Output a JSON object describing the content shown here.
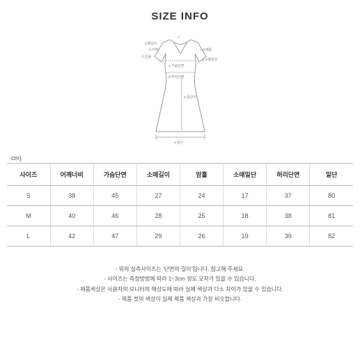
{
  "title": "SIZE INFO",
  "unit": "cm)",
  "diagram": {
    "stroke": "#999999",
    "label_color": "#888888",
    "labels": {
      "f": "f.",
      "shoulder": "b.어깨",
      "sleeve": "소매길이",
      "hem": "h.암홀",
      "bust": "c.가슴단면",
      "waist": "d.허리단면",
      "length": "a.총길이",
      "bottom": "e.밑단",
      "sleeve_hem": "j.소매통",
      "g": "g.소매밑단"
    }
  },
  "table": {
    "columns": [
      "사이즈",
      "어깨너비",
      "가슴단면",
      "소매길이",
      "암홀",
      "소매밑단",
      "허리단면",
      "밑단"
    ],
    "rows": [
      [
        "S",
        "38",
        "45",
        "27",
        "24",
        "17",
        "37",
        "80"
      ],
      [
        "M",
        "40",
        "46",
        "28",
        "25",
        "18",
        "38",
        "81"
      ],
      [
        "L",
        "42",
        "47",
        "29",
        "26",
        "19",
        "39",
        "82"
      ]
    ]
  },
  "notes": [
    "- 위의 실측사이즈는 '단면의 길이'입니다. 참고해 주세요.",
    "- 사이즈는 측정방법에 따라 1~3cm 정도 오차가 있을 수 있습니다.",
    "- 제품색상은 사용자의 모니터의 해상도에 따라 실제 색상과 다소 차이가 있을 수 있습니다.",
    "- 제품 컷의 색상이 실제 제품 색상과 가장 비슷합니다."
  ]
}
